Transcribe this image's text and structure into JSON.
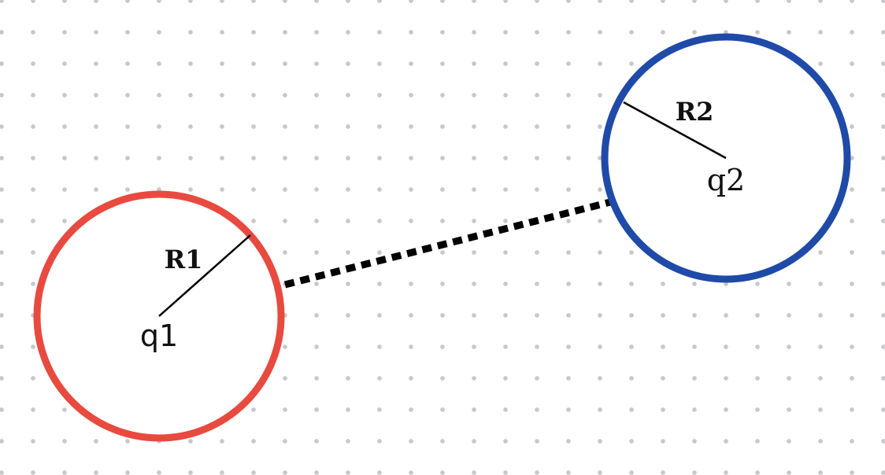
{
  "diagram": {
    "background": {
      "pattern": "dot-grid",
      "dot_color": "#c8c8cc",
      "fill": "#ffffff"
    },
    "connector": {
      "style": "dotted",
      "color": "#000000"
    },
    "charges": [
      {
        "name": "q1",
        "label": "q1",
        "radius_label": "R1",
        "ring_color": "#e84a3f"
      },
      {
        "name": "q2",
        "label": "q2",
        "radius_label": "R2",
        "ring_color": "#1f4aa8"
      }
    ]
  }
}
